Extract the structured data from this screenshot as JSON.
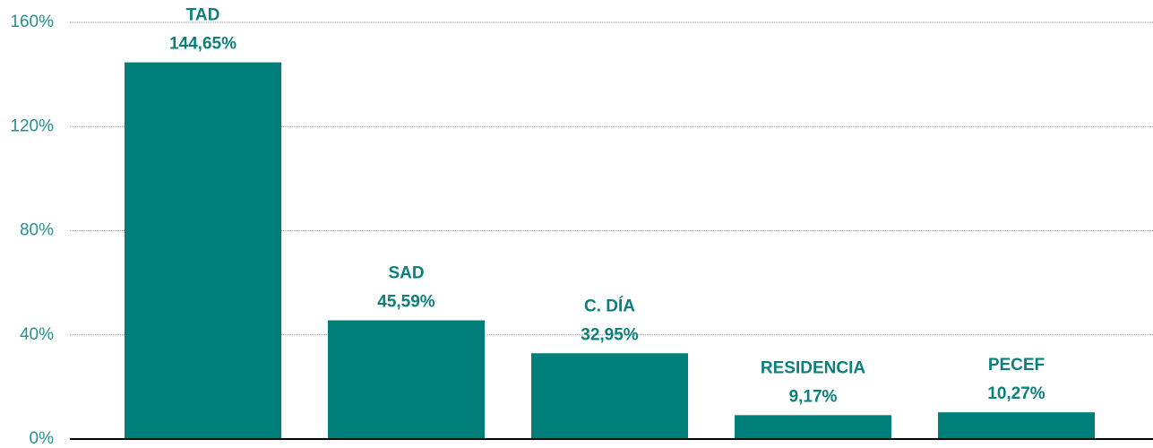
{
  "chart_data": {
    "type": "bar",
    "categories": [
      "TAD",
      "SAD",
      "C. DÍA",
      "RESIDENCIA",
      "PECEF"
    ],
    "values": [
      144.65,
      45.59,
      32.95,
      9.17,
      10.27
    ],
    "value_labels": [
      "144,65%",
      "45,59%",
      "32,95%",
      "9,17%",
      "10,27%"
    ],
    "color": "#007f7a",
    "ylim": [
      0,
      160
    ],
    "yticks": [
      {
        "value": 0,
        "label": "0%"
      },
      {
        "value": 40,
        "label": "40%"
      },
      {
        "value": 80,
        "label": "80%"
      },
      {
        "value": 120,
        "label": "120%"
      },
      {
        "value": 160,
        "label": "160%"
      }
    ],
    "grid": true
  }
}
